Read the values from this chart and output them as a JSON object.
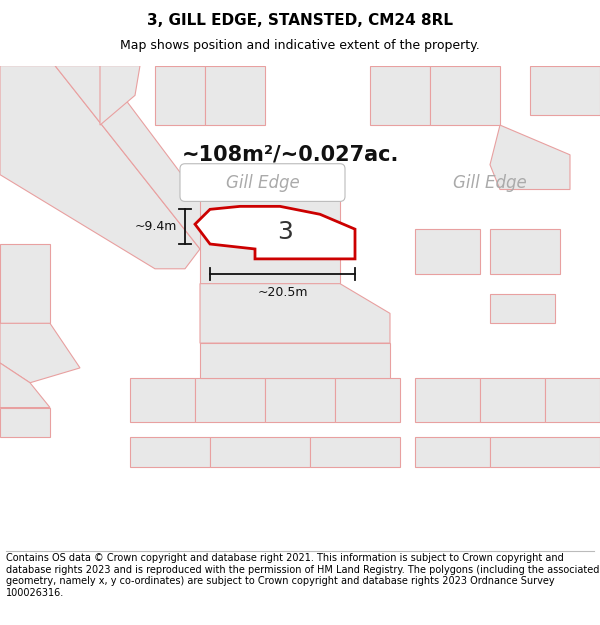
{
  "title": "3, GILL EDGE, STANSTED, CM24 8RL",
  "subtitle": "Map shows position and indicative extent of the property.",
  "footer": "Contains OS data © Crown copyright and database right 2021. This information is subject to Crown copyright and database rights 2023 and is reproduced with the permission of HM Land Registry. The polygons (including the associated geometry, namely x, y co-ordinates) are subject to Crown copyright and database rights 2023 Ordnance Survey 100026316.",
  "bg_color": "#ffffff",
  "map_bg": "#ffffff",
  "plot_outline_color": "#cc0000",
  "plot_fill_color": "#ffffff",
  "plot_label": "3",
  "area_text": "~108m²/~0.027ac.",
  "dim_width": "~20.5m",
  "dim_height": "~9.4m",
  "road_label1": "Gill Edge",
  "road_label2": "Gill Edge",
  "gray_fill": "#e8e8e8",
  "pink_edge": "#e8a0a0",
  "road_band_color": "#f0f0f0",
  "title_fontsize": 11,
  "subtitle_fontsize": 9,
  "footer_fontsize": 7,
  "area_fontsize": 15,
  "dim_fontsize": 9,
  "label_fontsize": 18,
  "road_label_fontsize": 12
}
